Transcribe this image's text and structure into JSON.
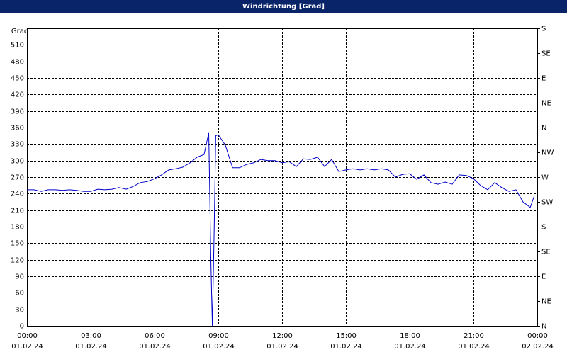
{
  "chart_data": {
    "type": "line",
    "title": "Windrichtung [Grad]",
    "y_label": "Grad",
    "xlim": [
      0,
      24
    ],
    "xticks": [
      {
        "value": 0,
        "label": "00:00"
      },
      {
        "value": 3,
        "label": "03:00"
      },
      {
        "value": 6,
        "label": "06:00"
      },
      {
        "value": 9,
        "label": "09:00"
      },
      {
        "value": 12,
        "label": "12:00"
      },
      {
        "value": 15,
        "label": "15:00"
      },
      {
        "value": 18,
        "label": "18:00"
      },
      {
        "value": 21,
        "label": "21:00"
      },
      {
        "value": 24,
        "label": "00:00"
      }
    ],
    "xtick_dates": [
      "01.02.24",
      "01.02.24",
      "01.02.24",
      "01.02.24",
      "01.02.24",
      "01.02.24",
      "01.02.24",
      "01.02.24",
      "02.02.24"
    ],
    "ylim": [
      0,
      540
    ],
    "yticks": [
      0,
      30,
      60,
      90,
      120,
      150,
      180,
      210,
      240,
      270,
      300,
      330,
      360,
      390,
      420,
      450,
      480,
      510
    ],
    "y2lim": [
      0,
      540
    ],
    "y2ticks": [
      {
        "value": 0,
        "label": "N"
      },
      {
        "value": 45,
        "label": "NE"
      },
      {
        "value": 90,
        "label": "E"
      },
      {
        "value": 135,
        "label": "SE"
      },
      {
        "value": 180,
        "label": "S"
      },
      {
        "value": 225,
        "label": "SW"
      },
      {
        "value": 270,
        "label": "W"
      },
      {
        "value": 315,
        "label": "NW"
      },
      {
        "value": 360,
        "label": "N"
      },
      {
        "value": 405,
        "label": "NE"
      },
      {
        "value": 450,
        "label": "E"
      },
      {
        "value": 495,
        "label": "SE"
      },
      {
        "value": 540,
        "label": "S"
      }
    ],
    "grid": true,
    "series": [
      {
        "name": "Windrichtung",
        "color": "#0000c8",
        "x": [
          0,
          0.33,
          0.67,
          1,
          1.33,
          1.67,
          2,
          2.33,
          2.67,
          3,
          3.33,
          3.67,
          4,
          4.33,
          4.67,
          5,
          5.33,
          5.67,
          6,
          6.33,
          6.67,
          7,
          7.33,
          7.67,
          8,
          8.33,
          8.55,
          8.65,
          8.72,
          8.8,
          8.88,
          9,
          9.33,
          9.67,
          10,
          10.33,
          10.67,
          11,
          11.33,
          11.67,
          12,
          12.33,
          12.67,
          13,
          13.33,
          13.67,
          14,
          14.33,
          14.67,
          15,
          15.33,
          15.67,
          16,
          16.33,
          16.67,
          17,
          17.33,
          17.67,
          18,
          18.33,
          18.67,
          19,
          19.33,
          19.67,
          20,
          20.33,
          20.67,
          21,
          21.33,
          21.67,
          22,
          22.33,
          22.67,
          23,
          23.33,
          23.67,
          23.87
        ],
        "values": [
          247,
          247,
          244,
          247,
          247,
          246,
          247,
          246,
          244,
          244,
          248,
          247,
          248,
          251,
          248,
          253,
          260,
          262,
          267,
          274,
          283,
          285,
          288,
          296,
          306,
          311,
          350,
          120,
          0,
          160,
          345,
          347,
          328,
          287,
          287,
          293,
          296,
          302,
          300,
          300,
          296,
          298,
          289,
          303,
          302,
          306,
          289,
          302,
          280,
          283,
          285,
          283,
          285,
          283,
          285,
          283,
          270,
          275,
          276,
          266,
          274,
          260,
          257,
          261,
          257,
          274,
          273,
          267,
          255,
          247,
          260,
          251,
          244,
          247,
          225,
          215,
          237
        ]
      }
    ]
  }
}
